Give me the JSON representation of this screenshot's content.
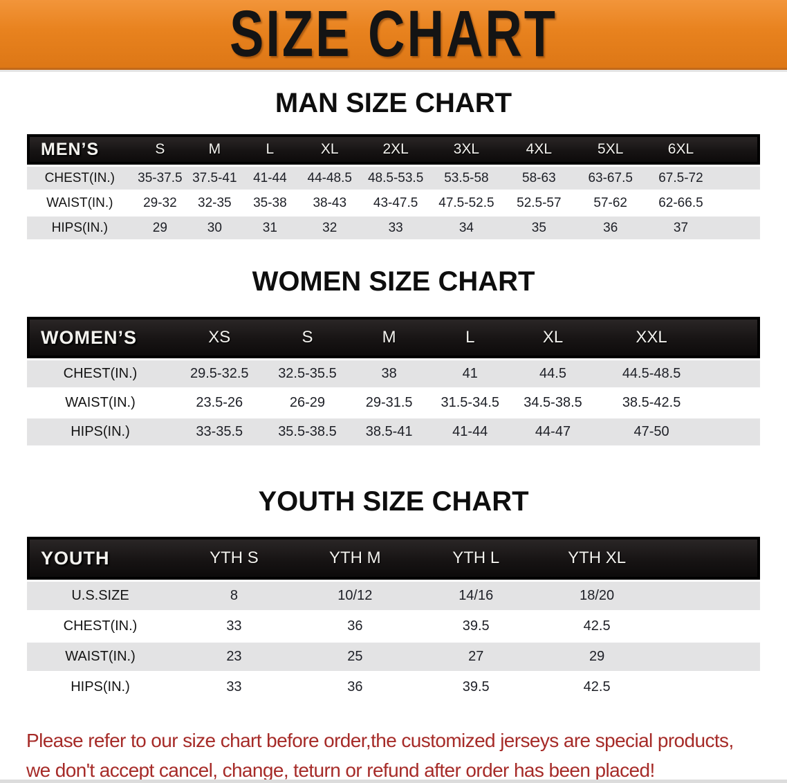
{
  "banner": {
    "title": "SIZE CHART",
    "bg_color": "#e8821e",
    "text_color": "#141414"
  },
  "sections": [
    {
      "id": "men",
      "title": "MAN SIZE CHART",
      "group_label": "MEN’S",
      "sizes": [
        "S",
        "M",
        "L",
        "XL",
        "2XL",
        "3XL",
        "4XL",
        "5XL",
        "6XL"
      ],
      "rows": [
        {
          "label": "CHEST(IN.)",
          "values": [
            "35-37.5",
            "37.5-41",
            "41-44",
            "44-48.5",
            "48.5-53.5",
            "53.5-58",
            "58-63",
            "63-67.5",
            "67.5-72"
          ]
        },
        {
          "label": "WAIST(IN.)",
          "values": [
            "29-32",
            "32-35",
            "35-38",
            "38-43",
            "43-47.5",
            "47.5-52.5",
            "52.5-57",
            "57-62",
            "62-66.5"
          ]
        },
        {
          "label": "HIPS(IN.)",
          "values": [
            "29",
            "30",
            "31",
            "32",
            "33",
            "34",
            "35",
            "36",
            "37"
          ]
        }
      ]
    },
    {
      "id": "women",
      "title": "WOMEN SIZE CHART",
      "group_label": "WOMEN’S",
      "sizes": [
        "XS",
        "S",
        "M",
        "L",
        "XL",
        "XXL"
      ],
      "rows": [
        {
          "label": "CHEST(IN.)",
          "values": [
            "29.5-32.5",
            "32.5-35.5",
            "38",
            "41",
            "44.5",
            "44.5-48.5"
          ]
        },
        {
          "label": "WAIST(IN.)",
          "values": [
            "23.5-26",
            "26-29",
            "29-31.5",
            "31.5-34.5",
            "34.5-38.5",
            "38.5-42.5"
          ]
        },
        {
          "label": "HIPS(IN.)",
          "values": [
            "33-35.5",
            "35.5-38.5",
            "38.5-41",
            "41-44",
            "44-47",
            "47-50"
          ]
        }
      ]
    },
    {
      "id": "youth",
      "title": "YOUTH SIZE CHART",
      "group_label": "YOUTH",
      "sizes": [
        "YTH S",
        "YTH M",
        "YTH L",
        "YTH XL"
      ],
      "rows": [
        {
          "label": "U.S.SIZE",
          "values": [
            "8",
            "10/12",
            "14/16",
            "18/20"
          ]
        },
        {
          "label": "CHEST(IN.)",
          "values": [
            "33",
            "36",
            "39.5",
            "42.5"
          ]
        },
        {
          "label": "WAIST(IN.)",
          "values": [
            "23",
            "25",
            "27",
            "29"
          ]
        },
        {
          "label": "HIPS(IN.)",
          "values": [
            "33",
            "36",
            "39.5",
            "42.5"
          ]
        }
      ]
    }
  ],
  "footer": {
    "text_color": "#a62b28",
    "lines": [
      "Please refer to our size chart before order,the customized jerseys are special products,",
      "we don't accept cancel, change, teturn or refund after order has been placed!"
    ]
  }
}
